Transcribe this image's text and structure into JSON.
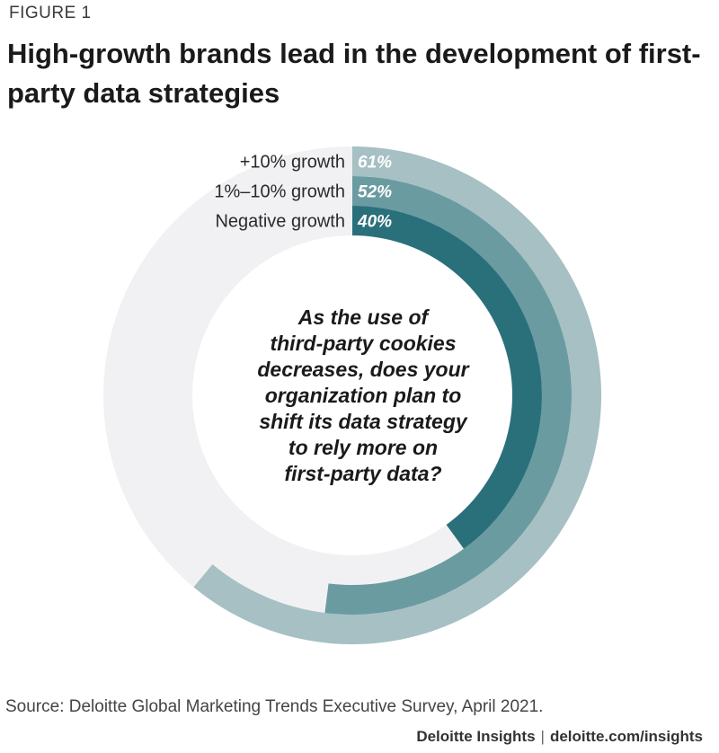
{
  "figure_label": "FIGURE 1",
  "title": "High-growth brands lead in the development of first-party data strategies",
  "source": "Source: Deloitte Global Marketing Trends Executive Survey, April 2021.",
  "footer": {
    "brand": "Deloitte Insights",
    "separator": "|",
    "url": "deloitte.com/insights"
  },
  "chart_data": {
    "type": "pie",
    "subtype": "radial-bar",
    "center_text": [
      "As the use of",
      "third-party cookies",
      "decreases, does your",
      "organization plan to",
      "shift its data strategy",
      "to rely more on",
      "first-party data?"
    ],
    "max": 100,
    "series": [
      {
        "name": "+10% growth",
        "value": 61,
        "label": "61%",
        "color": "#a6c0c4"
      },
      {
        "name": "1%–10% growth",
        "value": 52,
        "label": "52%",
        "color": "#6a9ba1"
      },
      {
        "name": "Negative growth",
        "value": 40,
        "label": "40%",
        "color": "#2a707b"
      }
    ],
    "track_color": "#f1f1f3"
  }
}
